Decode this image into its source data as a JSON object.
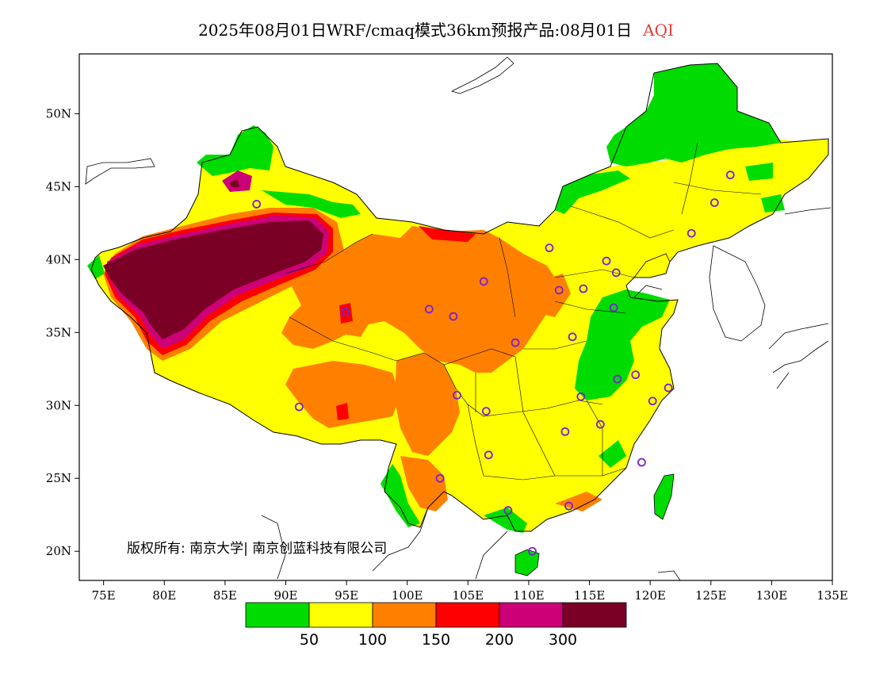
{
  "title": {
    "main": "2025年08月01日WRF/cmaq模式36km预报产品:08月01日",
    "variable": "AQI"
  },
  "axes": {
    "lon_labels": [
      "75E",
      "80E",
      "85E",
      "90E",
      "95E",
      "100E",
      "105E",
      "110E",
      "115E",
      "120E",
      "125E",
      "130E",
      "135E"
    ],
    "lat_labels": [
      "50N",
      "45N",
      "40N",
      "35N",
      "30N",
      "25N",
      "20N"
    ]
  },
  "copyright": "版权所有: 南京大学| 南京创蓝科技有限公司",
  "legend": {
    "colors": [
      "#00dc00",
      "#ffff00",
      "#ff8000",
      "#ff0000",
      "#cc0077",
      "#7a0025"
    ],
    "labels": [
      "50",
      "100",
      "150",
      "200",
      "300"
    ]
  },
  "stations": [
    {
      "lon": 87.6,
      "lat": 43.8
    },
    {
      "lon": 91.1,
      "lat": 29.9
    },
    {
      "lon": 94.9,
      "lat": 36.4
    },
    {
      "lon": 101.8,
      "lat": 36.6
    },
    {
      "lon": 103.8,
      "lat": 36.1
    },
    {
      "lon": 106.3,
      "lat": 38.5
    },
    {
      "lon": 104.1,
      "lat": 30.7
    },
    {
      "lon": 102.7,
      "lat": 25.0
    },
    {
      "lon": 106.7,
      "lat": 26.6
    },
    {
      "lon": 106.5,
      "lat": 29.6
    },
    {
      "lon": 108.9,
      "lat": 34.3
    },
    {
      "lon": 111.7,
      "lat": 40.8
    },
    {
      "lon": 112.5,
      "lat": 37.9
    },
    {
      "lon": 114.5,
      "lat": 38.0
    },
    {
      "lon": 116.4,
      "lat": 39.9
    },
    {
      "lon": 117.2,
      "lat": 39.1
    },
    {
      "lon": 117.0,
      "lat": 36.7
    },
    {
      "lon": 113.6,
      "lat": 34.7
    },
    {
      "lon": 114.3,
      "lat": 30.6
    },
    {
      "lon": 117.3,
      "lat": 31.8
    },
    {
      "lon": 118.8,
      "lat": 32.1
    },
    {
      "lon": 121.5,
      "lat": 31.2
    },
    {
      "lon": 120.2,
      "lat": 30.3
    },
    {
      "lon": 115.9,
      "lat": 28.7
    },
    {
      "lon": 113.0,
      "lat": 28.2
    },
    {
      "lon": 119.3,
      "lat": 26.1
    },
    {
      "lon": 113.3,
      "lat": 23.1
    },
    {
      "lon": 108.3,
      "lat": 22.8
    },
    {
      "lon": 110.3,
      "lat": 20.0
    },
    {
      "lon": 123.4,
      "lat": 41.8
    },
    {
      "lon": 125.3,
      "lat": 43.9
    },
    {
      "lon": 126.6,
      "lat": 45.8
    }
  ]
}
